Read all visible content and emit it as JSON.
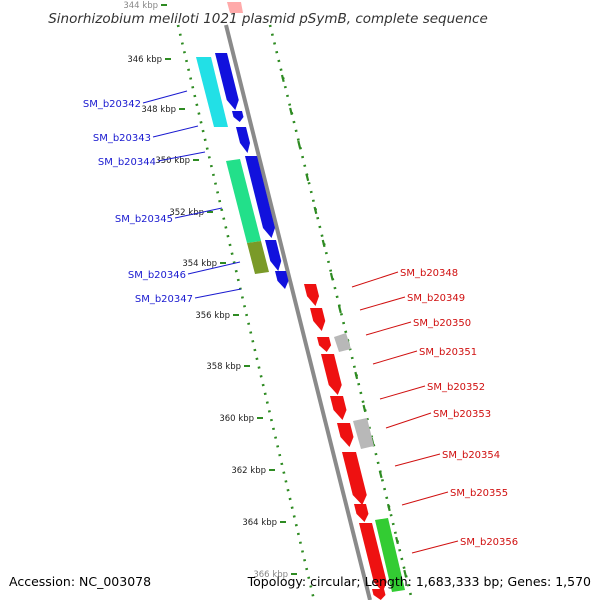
{
  "title": "Sinorhizobium meliloti 1021 plasmid pSymB, complete sequence",
  "footer": {
    "accession": "Accession: NC_003078",
    "summary": "Topology: circular; Length: 1,683,333 bp; Genes: 1,570"
  },
  "colors": {
    "backbone": "#8a8a8a",
    "dotted_track": "#2e8b22",
    "left_label": "#1a1ad0",
    "right_label": "#d01010",
    "forward_gene": "#1111dd",
    "reverse_gene": "#ee1111",
    "cyan_feature": "#22e0e6",
    "green_feature": "#22e08a",
    "olive_feature": "#7a9a28",
    "grey_feature": "#b8b8b8",
    "bright_green_feature": "#33cc33"
  },
  "ticks": [
    "344 kbp",
    "346 kbp",
    "348 kbp",
    "350 kbp",
    "352 kbp",
    "354 kbp",
    "356 kbp",
    "358 kbp",
    "360 kbp",
    "362 kbp",
    "364 kbp",
    "366 kbp"
  ],
  "left_genes": [
    "SM_b20342",
    "SM_b20343",
    "SM_b20344",
    "SM_b20345",
    "SM_b20346",
    "SM_b20347"
  ],
  "right_genes": [
    "SM_b20348",
    "SM_b20349",
    "SM_b20350",
    "SM_b20351",
    "SM_b20352",
    "SM_b20353",
    "SM_b20354",
    "SM_b20355",
    "SM_b20356"
  ]
}
